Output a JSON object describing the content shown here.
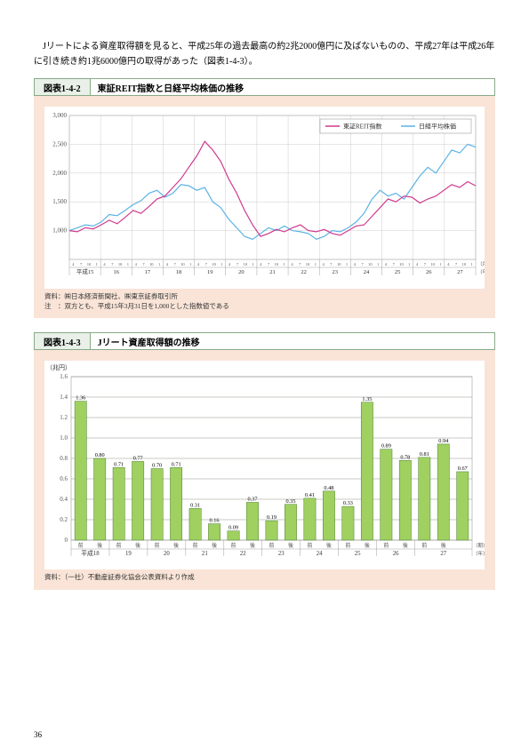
{
  "page": {
    "number": "36"
  },
  "intro_text": "Jリートによる資産取得額を見ると、平成25年の過去最高の約2兆2000億円に及ばないものの、平成27年は平成26年に引き続き約1兆6000億円の取得があった（図表1-4-3）。",
  "fig1": {
    "num": "図表1-4-2",
    "title": "東証REIT指数と日経平均株価の推移",
    "type": "line",
    "ylabel": "",
    "ylim": [
      500,
      3000
    ],
    "ytick_step": 500,
    "yticks": [
      1000,
      1500,
      2000,
      2500,
      3000
    ],
    "xyears": [
      "平成15",
      "16",
      "17",
      "18",
      "19",
      "20",
      "21",
      "22",
      "23",
      "24",
      "25",
      "26",
      "27"
    ],
    "xsub": [
      "4",
      "7",
      "10",
      "1"
    ],
    "xsub_unit": "（月）",
    "x_unit": "（年）",
    "legend": [
      {
        "label": "東証REIT指数",
        "color": "#d1398f"
      },
      {
        "label": "日経平均株価",
        "color": "#5ab3e4"
      }
    ],
    "series_reit": {
      "color": "#d1398f"
    },
    "series_nikkei": {
      "color": "#5ab3e4"
    },
    "background_color": "#ffffff",
    "grid_color": "#c0c0c0",
    "note_label": "資料：",
    "note_src": "㈱日本経済新聞社、㈱東京証券取引所",
    "note2_label": "注　：",
    "note2": "双方とも、平成15年3月31日を1,000とした指数値である"
  },
  "fig2": {
    "num": "図表1-4-3",
    "title": "Jリート資産取得額の推移",
    "type": "bar",
    "ylabel": "（兆円）",
    "ylim": [
      0,
      1.6
    ],
    "ytick_step": 0.2,
    "yticks": [
      "0",
      "0.2",
      "0.4",
      "0.6",
      "0.8",
      "1.0",
      "1.2",
      "1.4",
      "1.6"
    ],
    "bar_color": "#a0d060",
    "bar_border": "#4a8030",
    "grid_color": "#7a7a6a",
    "xyears": [
      "平成18",
      "19",
      "20",
      "21",
      "22",
      "23",
      "24",
      "25",
      "26",
      "27"
    ],
    "xsub": [
      "前",
      "後"
    ],
    "xsub_unit": "（期）",
    "x_unit": "（年）",
    "values": [
      1.36,
      0.8,
      0.71,
      0.77,
      0.7,
      0.71,
      0.31,
      0.16,
      0.09,
      0.37,
      0.19,
      0.35,
      0.41,
      0.48,
      0.33,
      1.35,
      0.89,
      0.78,
      0.81,
      0.94,
      0.67
    ],
    "value_labels": [
      "1.36",
      "0.80",
      "0.71",
      "0.77",
      "0.70",
      "0.71",
      "0.31",
      "0.16",
      "0.09",
      "0.37",
      "0.19",
      "0.35",
      "0.41",
      "0.48",
      "0.33",
      "1.35",
      "0.89",
      "0.78",
      "0.81",
      "0.94",
      "0.67"
    ],
    "note_label": "資料：",
    "note_src": "（一社）不動産証券化協会公表資料より作成"
  }
}
